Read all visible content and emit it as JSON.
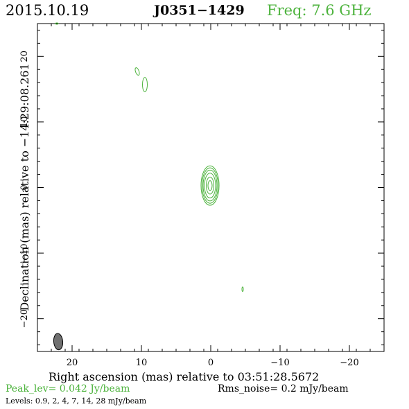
{
  "header": {
    "date": "2015.10.19",
    "source": "J0351−1429",
    "freq": "Freq: 7.6 GHz"
  },
  "footer": {
    "peak": "Peak_lev=  0.042 Jy/beam",
    "rms": "Rms_noise=  0.2 mJy/beam",
    "levels": "Levels: 0.9,   2,   4,   7,  14,  28 mJy/beam"
  },
  "chart_data": {
    "type": "contour",
    "xlabel": "Right ascension (mas) relative to 03:51:28.5672",
    "ylabel": "Declination (mas) relative to −14:29:08.261",
    "xlim": [
      25,
      -25
    ],
    "ylim": [
      -25,
      25
    ],
    "x_ticks": [
      20,
      10,
      0,
      -10,
      -20
    ],
    "y_ticks": [
      20,
      10,
      0,
      -10,
      -20
    ],
    "x_tick_labels": [
      "20",
      "10",
      "0",
      "−10",
      "−20"
    ],
    "y_tick_labels": [
      "20",
      "10",
      "0",
      "−10",
      "−20"
    ],
    "contour_levels_mJy": [
      0.9,
      2,
      4,
      7,
      14,
      28
    ],
    "peak_Jy_per_beam": 0.042,
    "rms_mJy_per_beam": 0.2,
    "contour_color": "#4db33d",
    "core": {
      "x": 0.1,
      "y": 0.3,
      "contours": [
        {
          "rx": 1.3,
          "ry": 3.0
        },
        {
          "rx": 1.15,
          "ry": 2.7
        },
        {
          "rx": 1.0,
          "ry": 2.35
        },
        {
          "rx": 0.8,
          "ry": 1.9
        },
        {
          "rx": 0.55,
          "ry": 1.3
        },
        {
          "rx": 0.3,
          "ry": 0.75
        }
      ]
    },
    "components": [
      {
        "x": 10.6,
        "y": 17.7,
        "rx": 0.25,
        "ry": 0.6,
        "angle": -20
      },
      {
        "x": 9.5,
        "y": 15.7,
        "rx": 0.35,
        "ry": 1.1,
        "angle": 0
      },
      {
        "x": -4.6,
        "y": -15.5,
        "rx": 0.1,
        "ry": 0.35,
        "angle": 0
      },
      {
        "x": 22.2,
        "y": 25.0,
        "rx": 0.2,
        "ry": 0.1,
        "angle": 0
      }
    ],
    "beam": {
      "x": 22.0,
      "y": -23.5,
      "bmaj": 2.5,
      "bmin": 1.3,
      "pa": -5,
      "color": "#707070"
    }
  }
}
